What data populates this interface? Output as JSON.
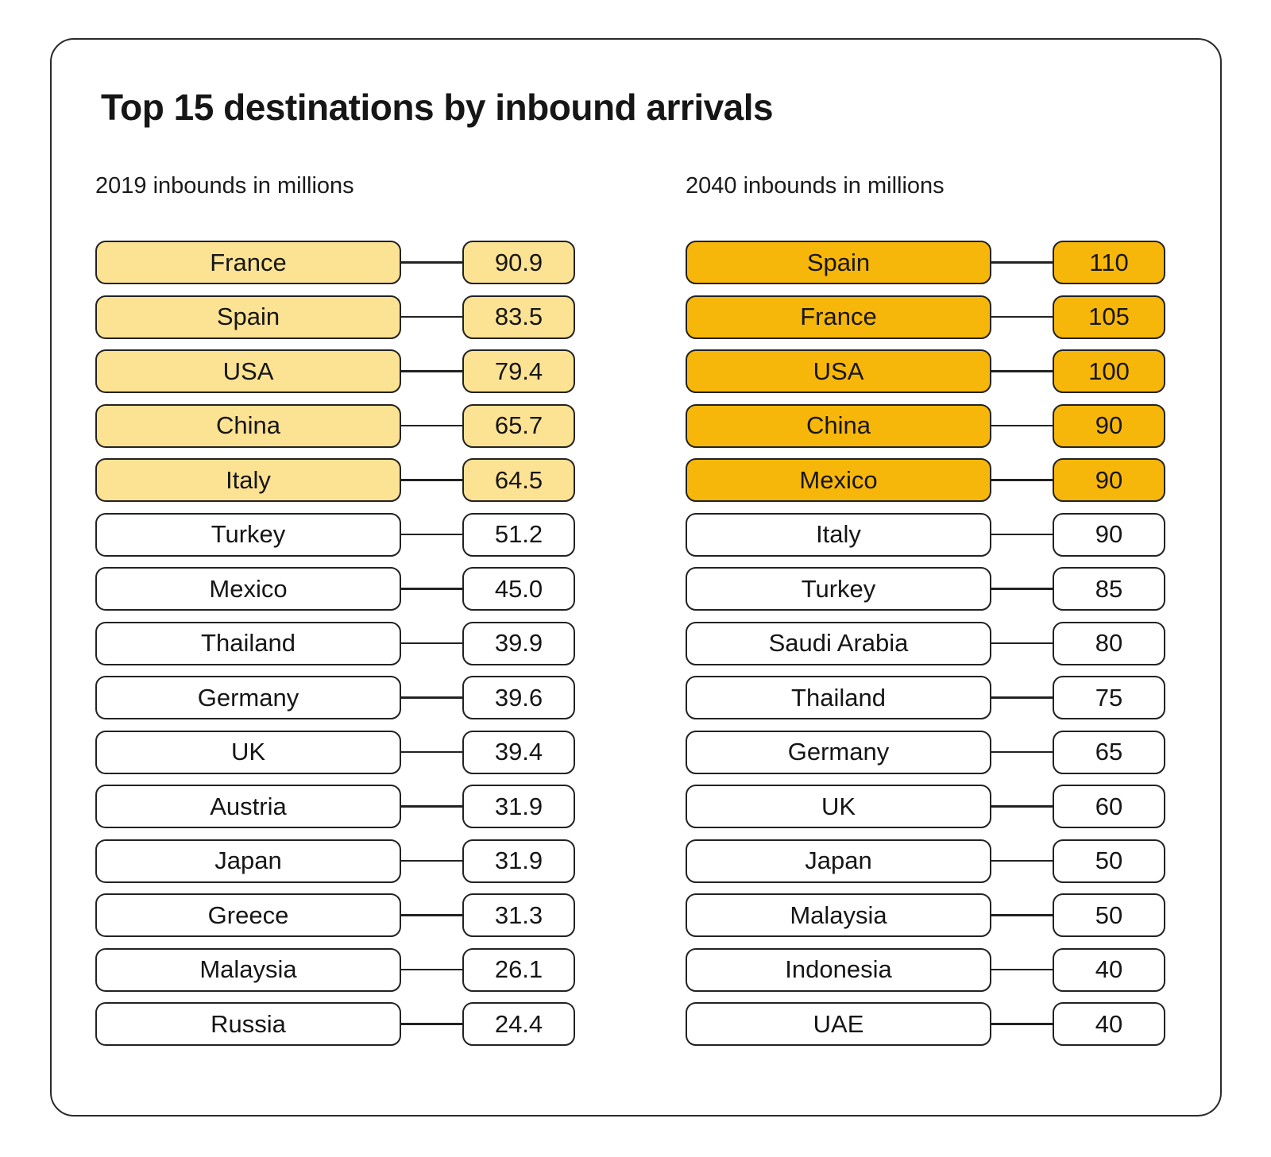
{
  "title": "Top 15 destinations by inbound arrivals",
  "colors": {
    "ink": "#222222",
    "highlight_2019": "#FCE293",
    "highlight_2040": "#F7B70A",
    "box_background": "#ffffff"
  },
  "chart_data": {
    "type": "table",
    "title": "Top 15 destinations by inbound arrivals",
    "layout": "two ranked lists, country box linked by line to value box, top 5 rows highlighted",
    "columns": [
      {
        "id": "2019",
        "subtitle": "2019 inbounds in millions",
        "unit": "millions of inbound arrivals",
        "highlight_top_n": 5,
        "highlight_color": "#FCE293",
        "rows": [
          {
            "country": "France",
            "value": "90.9",
            "highlighted": true
          },
          {
            "country": "Spain",
            "value": "83.5",
            "highlighted": true
          },
          {
            "country": "USA",
            "value": "79.4",
            "highlighted": true
          },
          {
            "country": "China",
            "value": "65.7",
            "highlighted": true
          },
          {
            "country": "Italy",
            "value": "64.5",
            "highlighted": true
          },
          {
            "country": "Turkey",
            "value": "51.2",
            "highlighted": false
          },
          {
            "country": "Mexico",
            "value": "45.0",
            "highlighted": false
          },
          {
            "country": "Thailand",
            "value": "39.9",
            "highlighted": false
          },
          {
            "country": "Germany",
            "value": "39.6",
            "highlighted": false
          },
          {
            "country": "UK",
            "value": "39.4",
            "highlighted": false
          },
          {
            "country": "Austria",
            "value": "31.9",
            "highlighted": false
          },
          {
            "country": "Japan",
            "value": "31.9",
            "highlighted": false
          },
          {
            "country": "Greece",
            "value": "31.3",
            "highlighted": false
          },
          {
            "country": "Malaysia",
            "value": "26.1",
            "highlighted": false
          },
          {
            "country": "Russia",
            "value": "24.4",
            "highlighted": false
          }
        ]
      },
      {
        "id": "2040",
        "subtitle": "2040 inbounds in millions",
        "unit": "millions of inbound arrivals",
        "highlight_top_n": 5,
        "highlight_color": "#F7B70A",
        "rows": [
          {
            "country": "Spain",
            "value": "110",
            "highlighted": true
          },
          {
            "country": "France",
            "value": "105",
            "highlighted": true
          },
          {
            "country": "USA",
            "value": "100",
            "highlighted": true
          },
          {
            "country": "China",
            "value": "90",
            "highlighted": true
          },
          {
            "country": "Mexico",
            "value": "90",
            "highlighted": true
          },
          {
            "country": "Italy",
            "value": "90",
            "highlighted": false
          },
          {
            "country": "Turkey",
            "value": "85",
            "highlighted": false
          },
          {
            "country": "Saudi Arabia",
            "value": "80",
            "highlighted": false
          },
          {
            "country": "Thailand",
            "value": "75",
            "highlighted": false
          },
          {
            "country": "Germany",
            "value": "65",
            "highlighted": false
          },
          {
            "country": "UK",
            "value": "60",
            "highlighted": false
          },
          {
            "country": "Japan",
            "value": "50",
            "highlighted": false
          },
          {
            "country": "Malaysia",
            "value": "50",
            "highlighted": false
          },
          {
            "country": "Indonesia",
            "value": "40",
            "highlighted": false
          },
          {
            "country": "UAE",
            "value": "40",
            "highlighted": false
          }
        ]
      }
    ]
  }
}
